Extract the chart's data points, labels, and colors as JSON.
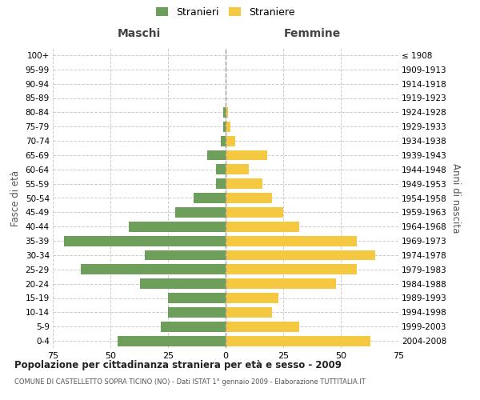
{
  "age_groups": [
    "100+",
    "95-99",
    "90-94",
    "85-89",
    "80-84",
    "75-79",
    "70-74",
    "65-69",
    "60-64",
    "55-59",
    "50-54",
    "45-49",
    "40-44",
    "35-39",
    "30-34",
    "25-29",
    "20-24",
    "15-19",
    "10-14",
    "5-9",
    "0-4"
  ],
  "birth_years": [
    "≤ 1908",
    "1909-1913",
    "1914-1918",
    "1919-1923",
    "1924-1928",
    "1929-1933",
    "1934-1938",
    "1939-1943",
    "1944-1948",
    "1949-1953",
    "1954-1958",
    "1959-1963",
    "1964-1968",
    "1969-1973",
    "1974-1978",
    "1979-1983",
    "1984-1988",
    "1989-1993",
    "1994-1998",
    "1999-2003",
    "2004-2008"
  ],
  "maschi": [
    0,
    0,
    0,
    0,
    1,
    1,
    2,
    8,
    4,
    4,
    14,
    22,
    42,
    70,
    35,
    63,
    37,
    25,
    25,
    28,
    47
  ],
  "femmine": [
    0,
    0,
    0,
    0,
    1,
    2,
    4,
    18,
    10,
    16,
    20,
    25,
    32,
    57,
    65,
    57,
    48,
    23,
    20,
    32,
    63
  ],
  "color_maschi": "#6d9e5a",
  "color_femmine": "#f5c842",
  "background_color": "#ffffff",
  "grid_color": "#cccccc",
  "title": "Popolazione per cittadinanza straniera per età e sesso - 2009",
  "subtitle": "COMUNE DI CASTELLETTO SOPRA TICINO (NO) - Dati ISTAT 1° gennaio 2009 - Elaborazione TUTTITALIA.IT",
  "xlabel_left": "Maschi",
  "xlabel_right": "Femmine",
  "ylabel_left": "Fasce di età",
  "ylabel_right": "Anni di nascita",
  "xlim": 75,
  "legend_maschi": "Stranieri",
  "legend_femmine": "Straniere"
}
